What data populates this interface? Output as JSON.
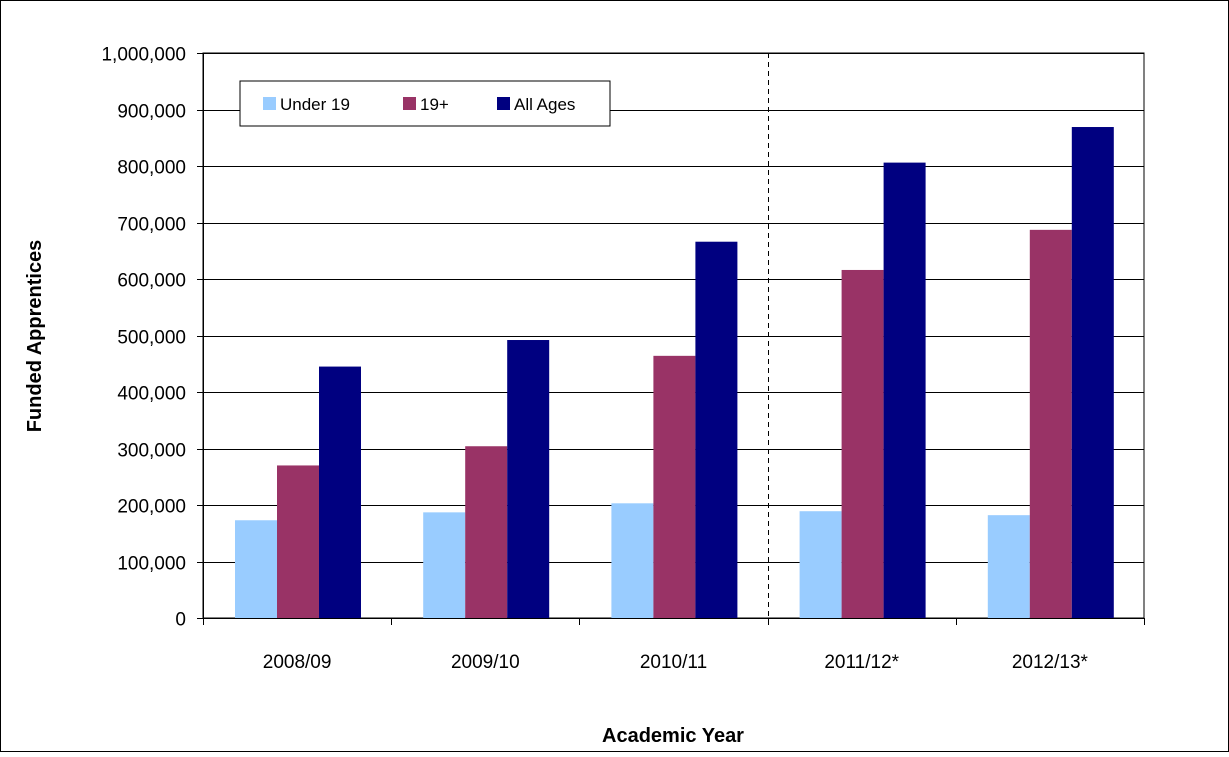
{
  "chart_data": {
    "type": "bar",
    "title": "",
    "xlabel": "Academic Year",
    "ylabel": "Funded Apprentices",
    "categories": [
      "2008/09",
      "2009/10",
      "2010/11",
      "2011/12*",
      "2012/13*"
    ],
    "series": [
      {
        "name": "Under 19",
        "color": "#99ccff",
        "values": [
          173000,
          187000,
          203000,
          189000,
          182000
        ]
      },
      {
        "name": "19+",
        "color": "#993366",
        "values": [
          270000,
          304000,
          464000,
          616000,
          687000
        ]
      },
      {
        "name": "All Ages",
        "color": "#000080",
        "values": [
          445000,
          492000,
          666000,
          806000,
          869000
        ]
      }
    ],
    "ylim": [
      0,
      1000000
    ],
    "yticks": [
      0,
      100000,
      200000,
      300000,
      400000,
      500000,
      600000,
      700000,
      800000,
      900000,
      1000000
    ],
    "ytick_labels": [
      "0",
      "100,000",
      "200,000",
      "300,000",
      "400,000",
      "500,000",
      "600,000",
      "700,000",
      "800,000",
      "900,000",
      "1,000,000"
    ],
    "grid": true,
    "legend_position": "top-left",
    "separator_after_category": "2010/11"
  }
}
